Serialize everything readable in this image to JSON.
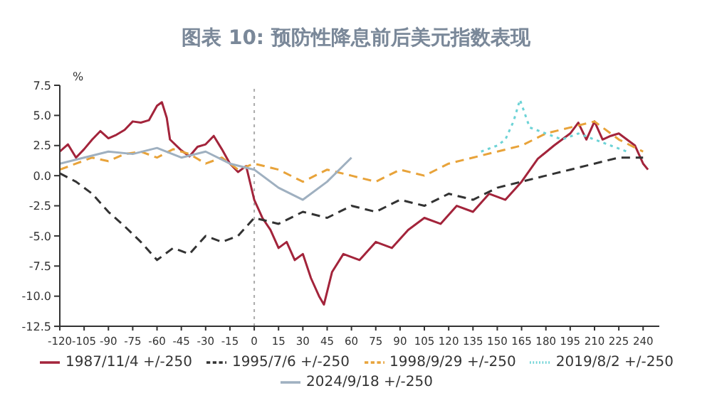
{
  "chart_data": {
    "type": "line",
    "title": "图表 10: 预防性降息前后美元指数表现",
    "ylabel": "%",
    "xlim": [
      -120,
      250
    ],
    "xticks": [
      -120,
      -105,
      -90,
      -75,
      -60,
      -45,
      -30,
      -15,
      0,
      15,
      30,
      45,
      60,
      75,
      90,
      105,
      120,
      135,
      150,
      165,
      180,
      195,
      210,
      225,
      240
    ],
    "ylim": [
      -12.5,
      7.5
    ],
    "yticks": [
      {
        "value": 7.5,
        "label": "7.5"
      },
      {
        "value": 5,
        "label": "5.0"
      },
      {
        "value": 2.5,
        "label": "2.5"
      },
      {
        "value": 0,
        "label": "0.0"
      },
      {
        "value": -2.5,
        "label": "-2.5"
      },
      {
        "value": -5,
        "label": "-5.0"
      },
      {
        "value": -7.5,
        "label": "-7.5"
      },
      {
        "value": -10,
        "label": "-10.0"
      },
      {
        "value": -12.5,
        "label": "-12.5"
      }
    ],
    "grid": false,
    "legend": "bottom",
    "marker": "none",
    "ref_lines": [
      {
        "axis": "x",
        "value": 0,
        "color": "#aaaaaa",
        "line_style": "dotted"
      }
    ],
    "series": [
      {
        "name": "1987/11/4 +/-250",
        "color": "#a3243b",
        "line_style": "solid",
        "x": [
          -120,
          -115,
          -110,
          -105,
          -100,
          -95,
          -90,
          -85,
          -80,
          -75,
          -70,
          -65,
          -60,
          -57,
          -54,
          -52,
          -45,
          -40,
          -35,
          -30,
          -25,
          -20,
          -15,
          -10,
          -5,
          0,
          5,
          10,
          15,
          20,
          25,
          30,
          35,
          40,
          43,
          48,
          55,
          65,
          75,
          85,
          95,
          105,
          115,
          125,
          135,
          145,
          155,
          165,
          175,
          185,
          195,
          200,
          205,
          210,
          215,
          220,
          225,
          230,
          235,
          240,
          243
        ],
        "values": [
          2.0,
          2.6,
          1.5,
          2.2,
          3.0,
          3.7,
          3.1,
          3.4,
          3.8,
          4.5,
          4.4,
          4.6,
          5.8,
          6.1,
          4.8,
          3.0,
          2.1,
          1.6,
          2.4,
          2.6,
          3.3,
          2.2,
          1.0,
          0.3,
          0.8,
          -2.0,
          -3.5,
          -4.5,
          -6.0,
          -5.5,
          -7.0,
          -6.5,
          -8.5,
          -10.0,
          -10.7,
          -8.0,
          -6.5,
          -7.0,
          -5.5,
          -6.0,
          -4.5,
          -3.5,
          -4.0,
          -2.5,
          -3.0,
          -1.5,
          -2.0,
          -0.5,
          1.4,
          2.5,
          3.5,
          4.4,
          3.0,
          4.5,
          3.0,
          3.3,
          3.5,
          3.0,
          2.5,
          1.0,
          0.5
        ]
      },
      {
        "name": "1995/7/6 +/-250",
        "color": "#333333",
        "line_style": "dashed",
        "x": [
          -120,
          -110,
          -100,
          -90,
          -80,
          -70,
          -60,
          -50,
          -40,
          -30,
          -20,
          -10,
          0,
          15,
          30,
          45,
          60,
          75,
          90,
          105,
          120,
          135,
          150,
          165,
          180,
          195,
          210,
          225,
          240
        ],
        "values": [
          0.2,
          -0.5,
          -1.5,
          -3.0,
          -4.2,
          -5.5,
          -7.0,
          -6.0,
          -6.5,
          -5.0,
          -5.5,
          -5.0,
          -3.5,
          -4.0,
          -3.0,
          -3.5,
          -2.5,
          -3.0,
          -2.0,
          -2.5,
          -1.5,
          -2.0,
          -1.0,
          -0.5,
          0.0,
          0.5,
          1.0,
          1.5,
          1.5
        ]
      },
      {
        "name": "1998/9/29 +/-250",
        "color": "#e8a33a",
        "line_style": "dashed",
        "x": [
          -120,
          -110,
          -100,
          -90,
          -80,
          -70,
          -60,
          -50,
          -40,
          -30,
          -20,
          -10,
          0,
          15,
          30,
          45,
          60,
          75,
          90,
          105,
          120,
          135,
          150,
          165,
          180,
          195,
          210,
          225,
          240
        ],
        "values": [
          0.5,
          1.0,
          1.5,
          1.2,
          1.8,
          2.0,
          1.5,
          2.2,
          1.8,
          1.0,
          1.5,
          0.5,
          1.0,
          0.5,
          -0.5,
          0.5,
          0.0,
          -0.5,
          0.5,
          0.0,
          1.0,
          1.5,
          2.0,
          2.5,
          3.5,
          4.0,
          4.5,
          3.0,
          2.0
        ]
      },
      {
        "name": "2019/8/2 +/-250",
        "color": "#6dd3d6",
        "line_style": "dotted",
        "x": [
          140,
          150,
          155,
          160,
          164,
          170,
          180,
          190,
          200,
          210,
          220,
          230
        ],
        "values": [
          2.0,
          2.5,
          3.0,
          4.5,
          6.3,
          4.0,
          3.5,
          3.0,
          3.5,
          3.0,
          2.5,
          2.0
        ]
      },
      {
        "name": "2024/9/18 +/-250",
        "color": "#9fb0c0",
        "line_style": "solid",
        "x": [
          -120,
          -105,
          -90,
          -75,
          -60,
          -45,
          -30,
          -15,
          0,
          15,
          30,
          45,
          60
        ],
        "values": [
          1.0,
          1.5,
          2.0,
          1.8,
          2.3,
          1.5,
          2.0,
          1.0,
          0.5,
          -1.0,
          -2.0,
          -0.5,
          1.5
        ]
      }
    ]
  }
}
